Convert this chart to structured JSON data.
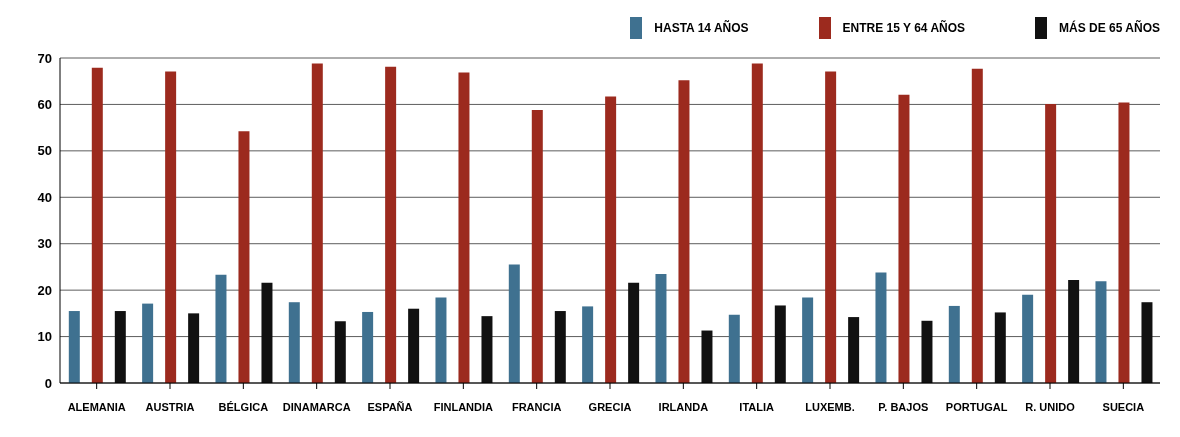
{
  "chart_data": {
    "type": "bar",
    "categories": [
      "ALEMANIA",
      "AUSTRIA",
      "BÉLGICA",
      "DINAMARCA",
      "ESPAÑA",
      "FINLANDIA",
      "FRANCIA",
      "GRECIA",
      "IRLANDA",
      "ITALIA",
      "LUXEMB.",
      "P. BAJOS",
      "PORTUGAL",
      "R. UNIDO",
      "SUECIA"
    ],
    "series": [
      {
        "name": "HASTA 14 AÑOS",
        "color": "#3f7190",
        "values": [
          15.5,
          17.1,
          23.3,
          17.4,
          15.3,
          18.4,
          25.5,
          16.5,
          23.5,
          14.7,
          18.4,
          23.8,
          16.6,
          19.0,
          21.9
        ]
      },
      {
        "name": "ENTRE 15 Y 64 AÑOS",
        "color": "#9c2a1e",
        "values": [
          67.9,
          67.1,
          54.2,
          68.8,
          68.1,
          66.9,
          58.8,
          61.7,
          65.2,
          68.8,
          67.1,
          62.1,
          67.7,
          60.1,
          60.4
        ]
      },
      {
        "name": "MÁS DE 65 AÑOS",
        "color": "#111111",
        "values": [
          15.5,
          15.0,
          21.6,
          13.3,
          16.0,
          14.4,
          15.5,
          21.6,
          11.3,
          16.7,
          14.2,
          13.4,
          15.2,
          22.2,
          17.4
        ]
      }
    ],
    "ylim": [
      0,
      70
    ],
    "yticks": [
      0,
      10,
      20,
      30,
      40,
      50,
      60,
      70
    ],
    "grid": "y",
    "legend": "top right"
  }
}
